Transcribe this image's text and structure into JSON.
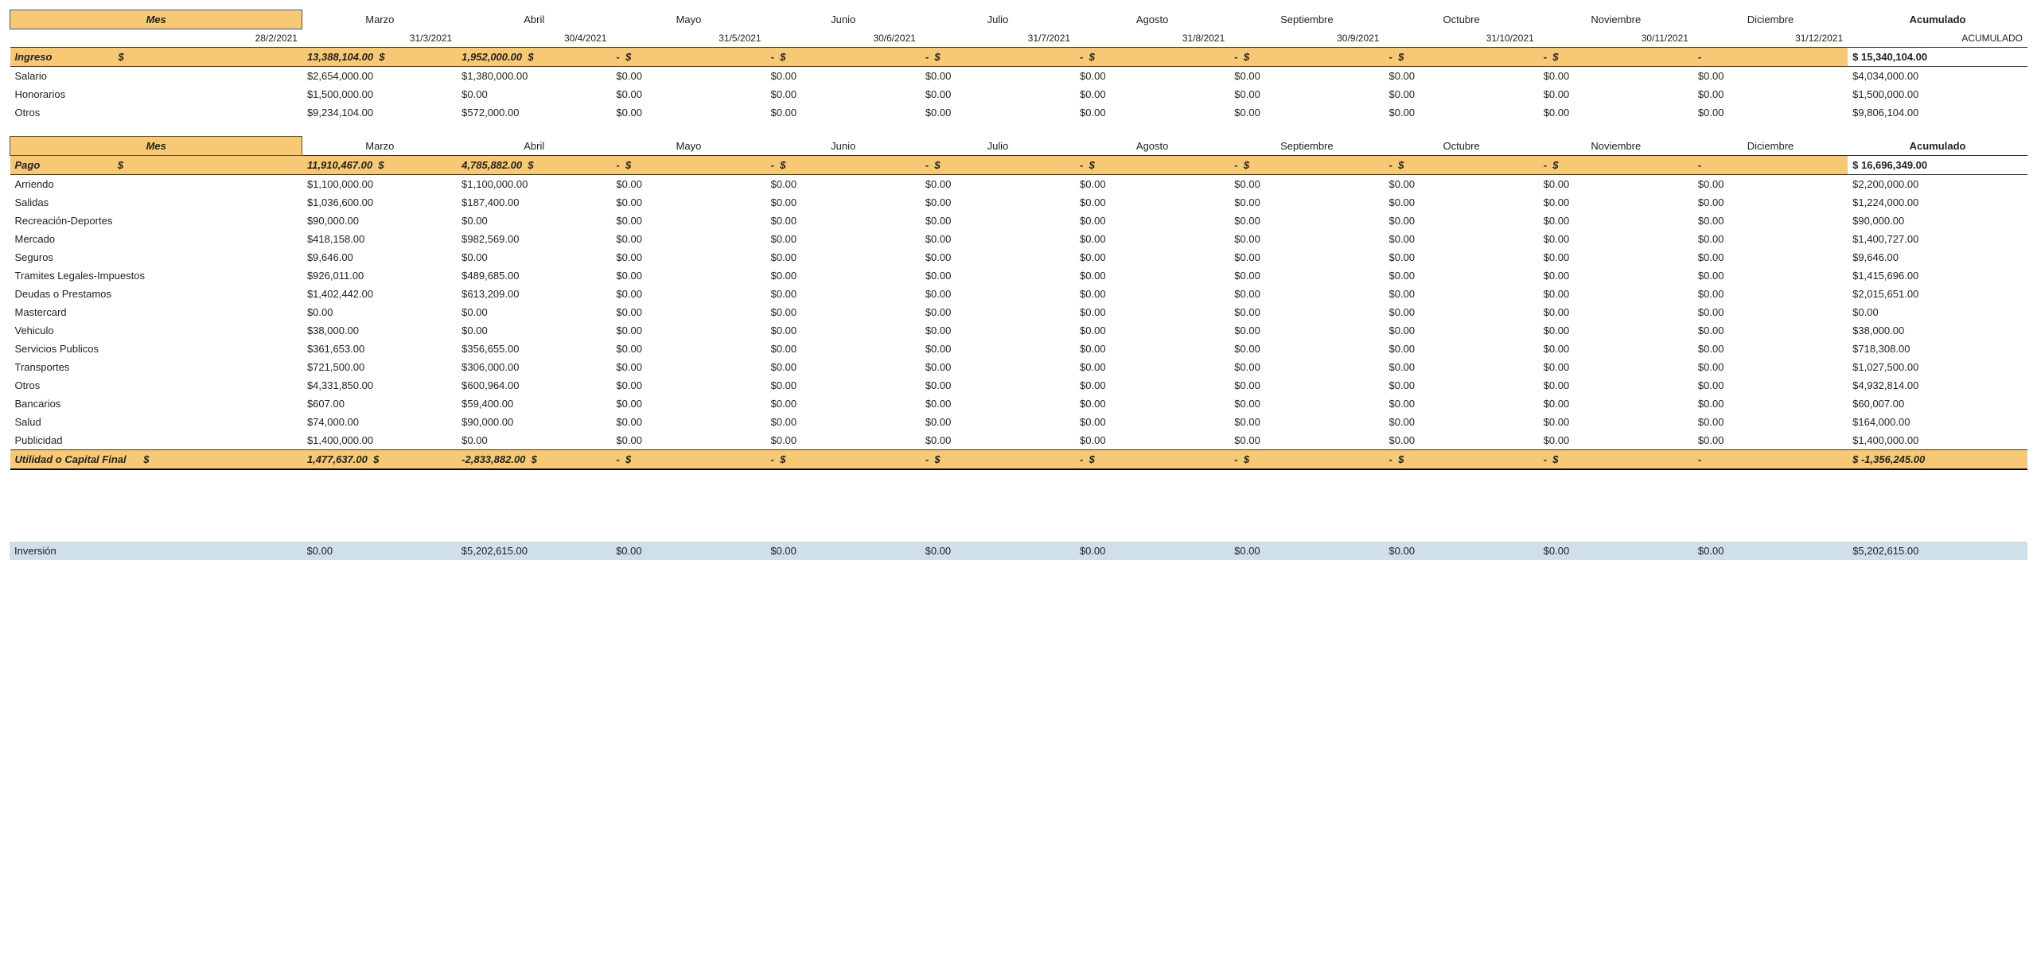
{
  "colors": {
    "header_fill": "#f7c974",
    "inversion_fill": "#cfe0ea",
    "border": "#333333",
    "text": "#222222",
    "background": "#ffffff"
  },
  "months": [
    "Marzo",
    "Abril",
    "Mayo",
    "Junio",
    "Julio",
    "Agosto",
    "Septiembre",
    "Octubre",
    "Noviembre",
    "Diciembre"
  ],
  "dates": [
    "28/2/2021",
    "31/3/2021",
    "30/4/2021",
    "31/5/2021",
    "30/6/2021",
    "31/7/2021",
    "31/8/2021",
    "30/9/2021",
    "31/10/2021",
    "30/11/2021",
    "31/12/2021"
  ],
  "labels": {
    "mes": "Mes",
    "acumulado": "Acumulado",
    "acumulado_upper": "ACUMULADO",
    "ingreso": "Ingreso",
    "pago": "Pago",
    "utilidad": "Utilidad o Capital Final",
    "inversion": "Inversión"
  },
  "ingreso": {
    "totals": [
      "13,388,104.00",
      "1,952,000.00",
      "-",
      "-",
      "-",
      "-",
      "-",
      "-",
      "-",
      "-"
    ],
    "sym": [
      "$",
      "$",
      "$",
      "$",
      "$",
      "$",
      "$",
      "$",
      "$",
      "$"
    ],
    "acc": "$ 15,340,104.00",
    "rows": [
      {
        "label": "Salario",
        "vals": [
          "$2,654,000.00",
          "$1,380,000.00",
          "$0.00",
          "$0.00",
          "$0.00",
          "$0.00",
          "$0.00",
          "$0.00",
          "$0.00",
          "$0.00"
        ],
        "acc": "$4,034,000.00"
      },
      {
        "label": "Honorarios",
        "vals": [
          "$1,500,000.00",
          "$0.00",
          "$0.00",
          "$0.00",
          "$0.00",
          "$0.00",
          "$0.00",
          "$0.00",
          "$0.00",
          "$0.00"
        ],
        "acc": "$1,500,000.00"
      },
      {
        "label": "Otros",
        "vals": [
          "$9,234,104.00",
          "$572,000.00",
          "$0.00",
          "$0.00",
          "$0.00",
          "$0.00",
          "$0.00",
          "$0.00",
          "$0.00",
          "$0.00"
        ],
        "acc": "$9,806,104.00"
      }
    ]
  },
  "pago": {
    "totals": [
      "11,910,467.00",
      "4,785,882.00",
      "-",
      "-",
      "-",
      "-",
      "-",
      "-",
      "-",
      "-"
    ],
    "sym": [
      "$",
      "$",
      "$",
      "$",
      "$",
      "$",
      "$",
      "$",
      "$",
      "$"
    ],
    "acc": "$ 16,696,349.00",
    "rows": [
      {
        "label": "Arriendo",
        "vals": [
          "$1,100,000.00",
          "$1,100,000.00",
          "$0.00",
          "$0.00",
          "$0.00",
          "$0.00",
          "$0.00",
          "$0.00",
          "$0.00",
          "$0.00"
        ],
        "acc": "$2,200,000.00"
      },
      {
        "label": "Salidas",
        "vals": [
          "$1,036,600.00",
          "$187,400.00",
          "$0.00",
          "$0.00",
          "$0.00",
          "$0.00",
          "$0.00",
          "$0.00",
          "$0.00",
          "$0.00"
        ],
        "acc": "$1,224,000.00"
      },
      {
        "label": "Recreación-Deportes",
        "vals": [
          "$90,000.00",
          "$0.00",
          "$0.00",
          "$0.00",
          "$0.00",
          "$0.00",
          "$0.00",
          "$0.00",
          "$0.00",
          "$0.00"
        ],
        "acc": "$90,000.00"
      },
      {
        "label": "Mercado",
        "vals": [
          "$418,158.00",
          "$982,569.00",
          "$0.00",
          "$0.00",
          "$0.00",
          "$0.00",
          "$0.00",
          "$0.00",
          "$0.00",
          "$0.00"
        ],
        "acc": "$1,400,727.00"
      },
      {
        "label": "Seguros",
        "vals": [
          "$9,646.00",
          "$0.00",
          "$0.00",
          "$0.00",
          "$0.00",
          "$0.00",
          "$0.00",
          "$0.00",
          "$0.00",
          "$0.00"
        ],
        "acc": "$9,646.00"
      },
      {
        "label": "Tramites Legales-Impuestos",
        "vals": [
          "$926,011.00",
          "$489,685.00",
          "$0.00",
          "$0.00",
          "$0.00",
          "$0.00",
          "$0.00",
          "$0.00",
          "$0.00",
          "$0.00"
        ],
        "acc": "$1,415,696.00"
      },
      {
        "label": "Deudas o Prestamos",
        "vals": [
          "$1,402,442.00",
          "$613,209.00",
          "$0.00",
          "$0.00",
          "$0.00",
          "$0.00",
          "$0.00",
          "$0.00",
          "$0.00",
          "$0.00"
        ],
        "acc": "$2,015,651.00"
      },
      {
        "label": "Mastercard",
        "vals": [
          "$0.00",
          "$0.00",
          "$0.00",
          "$0.00",
          "$0.00",
          "$0.00",
          "$0.00",
          "$0.00",
          "$0.00",
          "$0.00"
        ],
        "acc": "$0.00"
      },
      {
        "label": "Vehiculo",
        "vals": [
          "$38,000.00",
          "$0.00",
          "$0.00",
          "$0.00",
          "$0.00",
          "$0.00",
          "$0.00",
          "$0.00",
          "$0.00",
          "$0.00"
        ],
        "acc": "$38,000.00"
      },
      {
        "label": "Servicios Publicos",
        "vals": [
          "$361,653.00",
          "$356,655.00",
          "$0.00",
          "$0.00",
          "$0.00",
          "$0.00",
          "$0.00",
          "$0.00",
          "$0.00",
          "$0.00"
        ],
        "acc": "$718,308.00"
      },
      {
        "label": "Transportes",
        "vals": [
          "$721,500.00",
          "$306,000.00",
          "$0.00",
          "$0.00",
          "$0.00",
          "$0.00",
          "$0.00",
          "$0.00",
          "$0.00",
          "$0.00"
        ],
        "acc": "$1,027,500.00"
      },
      {
        "label": "Otros",
        "vals": [
          "$4,331,850.00",
          "$600,964.00",
          "$0.00",
          "$0.00",
          "$0.00",
          "$0.00",
          "$0.00",
          "$0.00",
          "$0.00",
          "$0.00"
        ],
        "acc": "$4,932,814.00"
      },
      {
        "label": "Bancarios",
        "vals": [
          "$607.00",
          "$59,400.00",
          "$0.00",
          "$0.00",
          "$0.00",
          "$0.00",
          "$0.00",
          "$0.00",
          "$0.00",
          "$0.00"
        ],
        "acc": "$60,007.00"
      },
      {
        "label": "Salud",
        "vals": [
          "$74,000.00",
          "$90,000.00",
          "$0.00",
          "$0.00",
          "$0.00",
          "$0.00",
          "$0.00",
          "$0.00",
          "$0.00",
          "$0.00"
        ],
        "acc": "$164,000.00"
      },
      {
        "label": "Publicidad",
        "vals": [
          "$1,400,000.00",
          "$0.00",
          "$0.00",
          "$0.00",
          "$0.00",
          "$0.00",
          "$0.00",
          "$0.00",
          "$0.00",
          "$0.00"
        ],
        "acc": "$1,400,000.00"
      }
    ]
  },
  "utilidad": {
    "totals": [
      "1,477,637.00",
      "-2,833,882.00",
      "-",
      "-",
      "-",
      "-",
      "-",
      "-",
      "-",
      "-"
    ],
    "sym": [
      "$",
      "$",
      "$",
      "$",
      "$",
      "$",
      "$",
      "$",
      "$",
      "$"
    ],
    "acc": "$ -1,356,245.00"
  },
  "inversion": {
    "vals": [
      "$0.00",
      "$5,202,615.00",
      "$0.00",
      "$0.00",
      "$0.00",
      "$0.00",
      "$0.00",
      "$0.00",
      "$0.00",
      "$0.00"
    ],
    "acc": "$5,202,615.00"
  }
}
